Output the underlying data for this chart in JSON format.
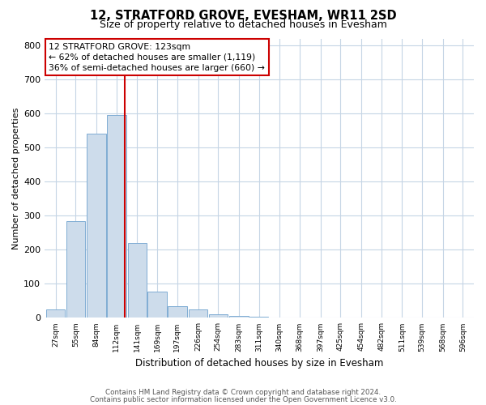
{
  "title": "12, STRATFORD GROVE, EVESHAM, WR11 2SD",
  "subtitle": "Size of property relative to detached houses in Evesham",
  "xlabel": "Distribution of detached houses by size in Evesham",
  "ylabel": "Number of detached properties",
  "footnote1": "Contains HM Land Registry data © Crown copyright and database right 2024.",
  "footnote2": "Contains public sector information licensed under the Open Government Licence v3.0.",
  "annotation_line1": "12 STRATFORD GROVE: 123sqm",
  "annotation_line2": "← 62% of detached houses are smaller (1,119)",
  "annotation_line3": "36% of semi-detached houses are larger (660) →",
  "property_size": 123,
  "bins": [
    27,
    55,
    84,
    112,
    141,
    169,
    197,
    226,
    254,
    283,
    311,
    340,
    368,
    397,
    425,
    454,
    482,
    511,
    539,
    568,
    596
  ],
  "values": [
    25,
    285,
    540,
    595,
    220,
    78,
    35,
    25,
    10,
    5,
    3,
    2,
    1,
    1,
    1,
    0,
    0,
    0,
    0,
    0
  ],
  "bar_color": "#cddceb",
  "bar_edge_color": "#7fadd4",
  "vline_color": "#cc0000",
  "grid_color": "#c5d5e5",
  "annotation_box_color": "#cc0000",
  "ylim": [
    0,
    820
  ],
  "yticks": [
    0,
    100,
    200,
    300,
    400,
    500,
    600,
    700,
    800
  ]
}
